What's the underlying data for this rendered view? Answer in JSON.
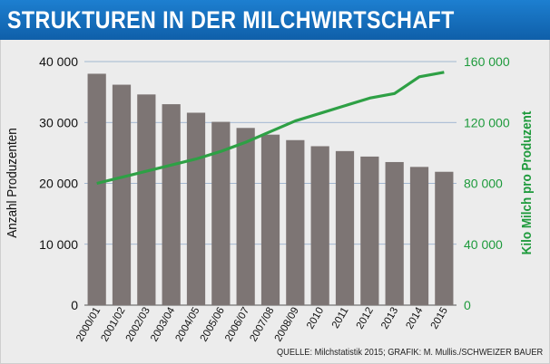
{
  "header": {
    "title": "STRUKTUREN IN DER MILCHWIRTSCHAFT"
  },
  "footer": {
    "source": "QUELLE: Milchstatistik 2015; GRAFIK: M. Mullis./SCHWEIZER BAUER"
  },
  "colors": {
    "title_bg": "#1572c3",
    "bars": "#7d7574",
    "line": "#2ea045",
    "right_axis": "#1e9a3c",
    "panel_bg": "#ececec"
  },
  "chart_data": {
    "type": "bar",
    "categories": [
      "2000/01",
      "2001/02",
      "2002/03",
      "2003/04",
      "2004/05",
      "2005/06",
      "2006/07",
      "2007/08",
      "2008/09",
      "2010",
      "2011",
      "2012",
      "2013",
      "2014",
      "2015"
    ],
    "series": [
      {
        "type": "bar",
        "axis": "left",
        "values": [
          38000,
          36200,
          34600,
          33000,
          31600,
          30100,
          29100,
          28000,
          27100,
          26100,
          25300,
          24400,
          23500,
          22700,
          21900
        ]
      },
      {
        "type": "line",
        "axis": "right",
        "values": [
          80000,
          84000,
          88000,
          92000,
          96000,
          101000,
          107000,
          114000,
          121000,
          126000,
          131000,
          136000,
          139000,
          150000,
          153000
        ]
      }
    ],
    "ylabel": "Anzahl Produzenten",
    "ylabel_right": "Kilo Milch pro Produzent",
    "ylim": [
      0,
      40000
    ],
    "ylim_right": [
      0,
      160000
    ],
    "yticks": [
      "0",
      "10 000",
      "20 000",
      "30 000",
      "40 000"
    ],
    "yticks_right": [
      "0",
      "40 000",
      "80 000",
      "120 000",
      "160 000"
    ],
    "grid": true
  }
}
